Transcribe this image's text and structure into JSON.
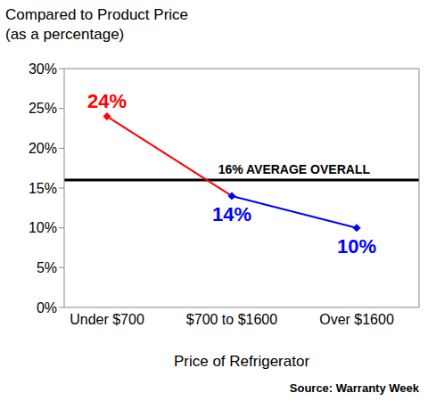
{
  "chart_data": {
    "type": "line",
    "title": "Compared to Product Price",
    "subtitle": "(as a percentage)",
    "x_label": "Price of Refrigerator",
    "source": "Source: Warranty Week",
    "categories": [
      "Under $700",
      "$700 to $1600",
      "Over $1600"
    ],
    "values": [
      24,
      14,
      10
    ],
    "value_labels": [
      "24%",
      "14%",
      "10%"
    ],
    "colors": [
      "#ff0000",
      "#0000ff",
      "#0000ff"
    ],
    "data_labels": true,
    "marker": "diamond",
    "grid": false,
    "ylim": [
      0,
      30
    ],
    "yticks": [
      {
        "value": 0,
        "label": "0%"
      },
      {
        "value": 5,
        "label": "5%"
      },
      {
        "value": 10,
        "label": "10%"
      },
      {
        "value": 15,
        "label": "15%"
      },
      {
        "value": 20,
        "label": "20%"
      },
      {
        "value": 25,
        "label": "25%"
      },
      {
        "value": 30,
        "label": "30%"
      }
    ],
    "reference_lines": [
      {
        "value": 16,
        "label": "16% AVERAGE OVERALL",
        "color": "#000000"
      }
    ]
  }
}
